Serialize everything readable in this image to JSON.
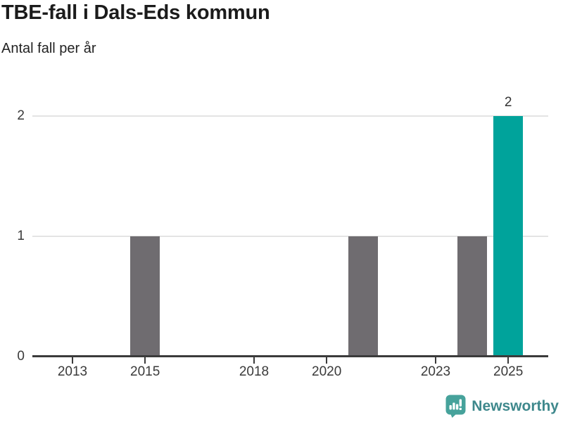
{
  "chart_data": {
    "type": "bar",
    "title": "TBE-fall i Dals-Eds kommun",
    "subtitle": "Antal fall per år",
    "categories": [
      2013,
      2014,
      2015,
      2016,
      2017,
      2018,
      2019,
      2020,
      2021,
      2022,
      2023,
      2024,
      2025
    ],
    "values": [
      0,
      0,
      1,
      0,
      0,
      0,
      0,
      0,
      1,
      0,
      0,
      1,
      2
    ],
    "ylim": [
      0,
      2
    ],
    "yticks": [
      0,
      1,
      2
    ],
    "x_tick_labels": [
      "2013",
      "2015",
      "2018",
      "2020",
      "2023",
      "2025"
    ],
    "grid": "horizontal",
    "legend": "none",
    "highlight_category": 2025,
    "data_labels": [
      {
        "category": 2025,
        "text": "2"
      }
    ],
    "colors": {
      "bar_default": "#6f6c70",
      "bar_highlight": "#00a39b",
      "gridline": "#e4e4e4",
      "axis": "#3b3b3b"
    }
  },
  "footer": {
    "brand": "Newsworthy",
    "logo_icon": "bar-chart-speech-bubble",
    "logo_color": "#46a29b",
    "logo_glyph_color": "#ffffff",
    "text_color": "#3e888c"
  }
}
